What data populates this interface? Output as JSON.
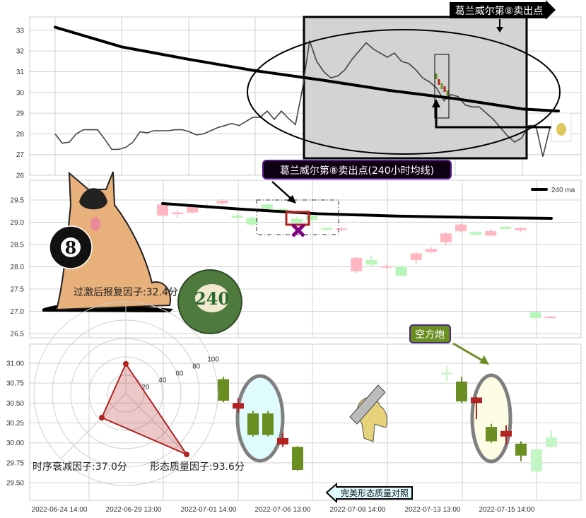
{
  "chart_data": [
    {
      "type": "line",
      "panel": "top",
      "ylim": [
        26,
        33.6
      ],
      "yticks": [
        "33",
        "32",
        "31",
        "30",
        "29",
        "28",
        "27",
        "26"
      ],
      "grid": true,
      "series": [
        {
          "role": "price",
          "color": "#444444",
          "values": [
            28.0,
            27.55,
            27.6,
            28.0,
            28.2,
            28.2,
            28.2,
            27.75,
            27.25,
            27.25,
            27.35,
            27.6,
            28.1,
            28.05,
            28.15,
            28.15,
            28.15,
            28.2,
            28.2,
            28.1,
            27.95,
            28.0,
            28.15,
            28.3,
            28.4,
            28.5,
            28.4,
            28.6,
            28.8,
            28.8,
            29.1,
            28.7,
            29.1,
            28.75,
            28.45,
            30.2,
            32.5,
            31.5,
            31.0,
            30.7,
            30.8,
            31.1,
            31.6,
            32.0,
            32.4,
            32.1,
            31.9,
            31.7,
            31.9,
            31.5,
            31.4,
            31.1,
            30.7,
            30.5,
            30.2,
            29.6,
            29.9,
            29.8,
            29.4,
            29.3,
            29.3,
            29.0,
            28.7,
            28.3,
            27.9,
            27.6,
            27.8,
            28.4,
            28.4,
            26.9,
            28.3
          ]
        },
        {
          "role": "240 ma",
          "color": "#000000",
          "values": [
            33.15,
            32.2,
            31.6,
            31.05,
            30.6,
            30.1,
            29.7,
            29.2,
            29.1
          ]
        }
      ],
      "annotations": {
        "sell_point_label": "葛兰威尔第⑧卖出点"
      }
    },
    {
      "type": "candlestick",
      "panel": "middle",
      "ylim": [
        26.4,
        29.7
      ],
      "yticks": [
        "29.5",
        "29.0",
        "28.5",
        "28.0",
        "27.5",
        "27.0",
        "26.5"
      ],
      "grid": true,
      "legend": {
        "label": "240 ma",
        "placement": "top-right"
      },
      "up_color": "#ffb6c1",
      "down_color": "#b8f5b8",
      "candles": [
        {
          "o": 29.15,
          "c": 29.4,
          "h": 29.42,
          "l": 29.12,
          "dir": "up"
        },
        {
          "o": 29.18,
          "c": 29.22,
          "h": 29.28,
          "l": 29.1,
          "dir": "up"
        },
        {
          "o": 29.22,
          "c": 29.35,
          "h": 29.38,
          "l": 29.2,
          "dir": "up"
        },
        {
          "o": 29.37,
          "c": 29.34,
          "h": 29.42,
          "l": 29.3,
          "dir": "down"
        },
        {
          "o": 29.42,
          "c": 29.48,
          "h": 29.52,
          "l": 29.4,
          "dir": "up"
        },
        {
          "o": 29.15,
          "c": 29.1,
          "h": 29.17,
          "l": 29.08,
          "dir": "down"
        },
        {
          "o": 29.1,
          "c": 28.95,
          "h": 29.15,
          "l": 28.9,
          "dir": "down"
        },
        {
          "o": 29.4,
          "c": 29.3,
          "h": 29.42,
          "l": 29.28,
          "dir": "down"
        },
        {
          "o": 29.3,
          "c": 29.22,
          "h": 29.32,
          "l": 29.2,
          "dir": "down"
        },
        {
          "o": 29.08,
          "c": 28.98,
          "h": 29.12,
          "l": 28.95,
          "dir": "down"
        },
        {
          "o": 29.15,
          "c": 29.05,
          "h": 29.17,
          "l": 29.03,
          "dir": "down"
        },
        {
          "o": 28.87,
          "c": 28.83,
          "h": 28.88,
          "l": 28.82,
          "dir": "down"
        },
        {
          "o": 28.84,
          "c": 28.86,
          "h": 28.9,
          "l": 28.8,
          "dir": "up"
        },
        {
          "o": 27.9,
          "c": 28.2,
          "h": 28.22,
          "l": 27.85,
          "dir": "up"
        },
        {
          "o": 28.15,
          "c": 28.05,
          "h": 28.25,
          "l": 28.0,
          "dir": "down"
        },
        {
          "o": 27.99,
          "c": 28.01,
          "h": 28.05,
          "l": 27.95,
          "dir": "up"
        },
        {
          "o": 28.0,
          "c": 27.8,
          "h": 28.02,
          "l": 27.78,
          "dir": "down"
        },
        {
          "o": 28.15,
          "c": 28.3,
          "h": 28.35,
          "l": 28.05,
          "dir": "up"
        },
        {
          "o": 28.33,
          "c": 28.4,
          "h": 28.45,
          "l": 28.3,
          "dir": "up"
        },
        {
          "o": 28.55,
          "c": 28.75,
          "h": 28.78,
          "l": 28.48,
          "dir": "up"
        },
        {
          "o": 28.8,
          "c": 28.95,
          "h": 28.97,
          "l": 28.77,
          "dir": "up"
        },
        {
          "o": 28.78,
          "c": 28.72,
          "h": 28.8,
          "l": 28.7,
          "dir": "down"
        },
        {
          "o": 28.7,
          "c": 28.8,
          "h": 28.85,
          "l": 28.68,
          "dir": "up"
        },
        {
          "o": 28.9,
          "c": 28.85,
          "h": 28.91,
          "l": 28.84,
          "dir": "down"
        },
        {
          "o": 28.82,
          "c": 28.87,
          "h": 28.9,
          "l": 28.78,
          "dir": "up"
        },
        {
          "o": 26.98,
          "c": 26.85,
          "h": 26.99,
          "l": 26.84,
          "dir": "down"
        },
        {
          "o": 26.86,
          "c": 26.88,
          "h": 26.9,
          "l": 26.84,
          "dir": "up"
        }
      ],
      "ma240": [
        29.42,
        29.3,
        29.2,
        29.15,
        29.12,
        29.1
      ],
      "annotations": {
        "sell_label": "葛兰威尔第⑧卖出点(240小时均线)"
      }
    },
    {
      "type": "candlestick",
      "panel": "bottom",
      "ylim": [
        29.35,
        31.25
      ],
      "yticks": [
        "31.00",
        "30.75",
        "30.50",
        "30.25",
        "30.00",
        "29.75",
        "29.50"
      ],
      "xticks": [
        "2022-06-24 14:00",
        "2022-06-29 13:00",
        "2022-07-01 14:00",
        "2022-07-06 13:00",
        "2022-07-08 14:00",
        "2022-07-13 13:00",
        "2022-07-15 14:00"
      ],
      "grid": true,
      "candles": [
        {
          "o": 30.8,
          "c": 30.53,
          "h": 30.83,
          "l": 30.51,
          "color": "#6b8e23"
        },
        {
          "o": 30.43,
          "c": 30.5,
          "h": 30.56,
          "l": 30.38,
          "color": "#b22222"
        },
        {
          "o": 30.37,
          "c": 30.1,
          "h": 30.4,
          "l": 30.08,
          "color": "#6b8e23"
        },
        {
          "o": 30.37,
          "c": 30.1,
          "h": 30.4,
          "l": 30.08,
          "color": "#6b8e23"
        },
        {
          "o": 29.98,
          "c": 30.06,
          "h": 30.13,
          "l": 29.95,
          "color": "#b22222"
        },
        {
          "o": 29.95,
          "c": 29.66,
          "h": 29.96,
          "l": 29.65,
          "color": "#6b8e23"
        },
        {
          "o": 30.88,
          "c": 30.87,
          "h": 30.97,
          "l": 30.78,
          "color": "#c4f5c4"
        },
        {
          "o": 30.77,
          "c": 30.52,
          "h": 30.83,
          "l": 30.5,
          "color": "#6b8e23"
        },
        {
          "o": 30.5,
          "c": 30.57,
          "h": 30.58,
          "l": 30.3,
          "color": "#b22222"
        },
        {
          "o": 30.2,
          "c": 30.02,
          "h": 30.24,
          "l": 30.0,
          "color": "#6b8e23"
        },
        {
          "o": 30.08,
          "c": 30.15,
          "h": 30.22,
          "l": 29.98,
          "color": "#b22222"
        },
        {
          "o": 29.99,
          "c": 29.84,
          "h": 30.02,
          "l": 29.77,
          "color": "#6b8e23"
        },
        {
          "o": 29.92,
          "c": 29.64,
          "h": 29.92,
          "l": 29.62,
          "color": "#c4f5c4"
        },
        {
          "o": 30.07,
          "c": 29.95,
          "h": 30.16,
          "l": 29.93,
          "color": "#c4f5c4"
        }
      ],
      "annotations": {
        "bear_label": "空方炮",
        "compare_label": "完美形态质量对照"
      }
    },
    {
      "type": "radar",
      "rticks": [
        "20",
        "40",
        "60",
        "80",
        "100"
      ],
      "axes": [
        {
          "label": "过激后报复因子:32.4分",
          "value": 32.4
        },
        {
          "label": "时序衰减因子:37.0分",
          "value": 37.0
        },
        {
          "label": "形态质量因子:93.6分",
          "value": 93.6
        }
      ],
      "color": "#b22222"
    }
  ],
  "images": {
    "dog_ball": "8",
    "green_ball": "240"
  }
}
